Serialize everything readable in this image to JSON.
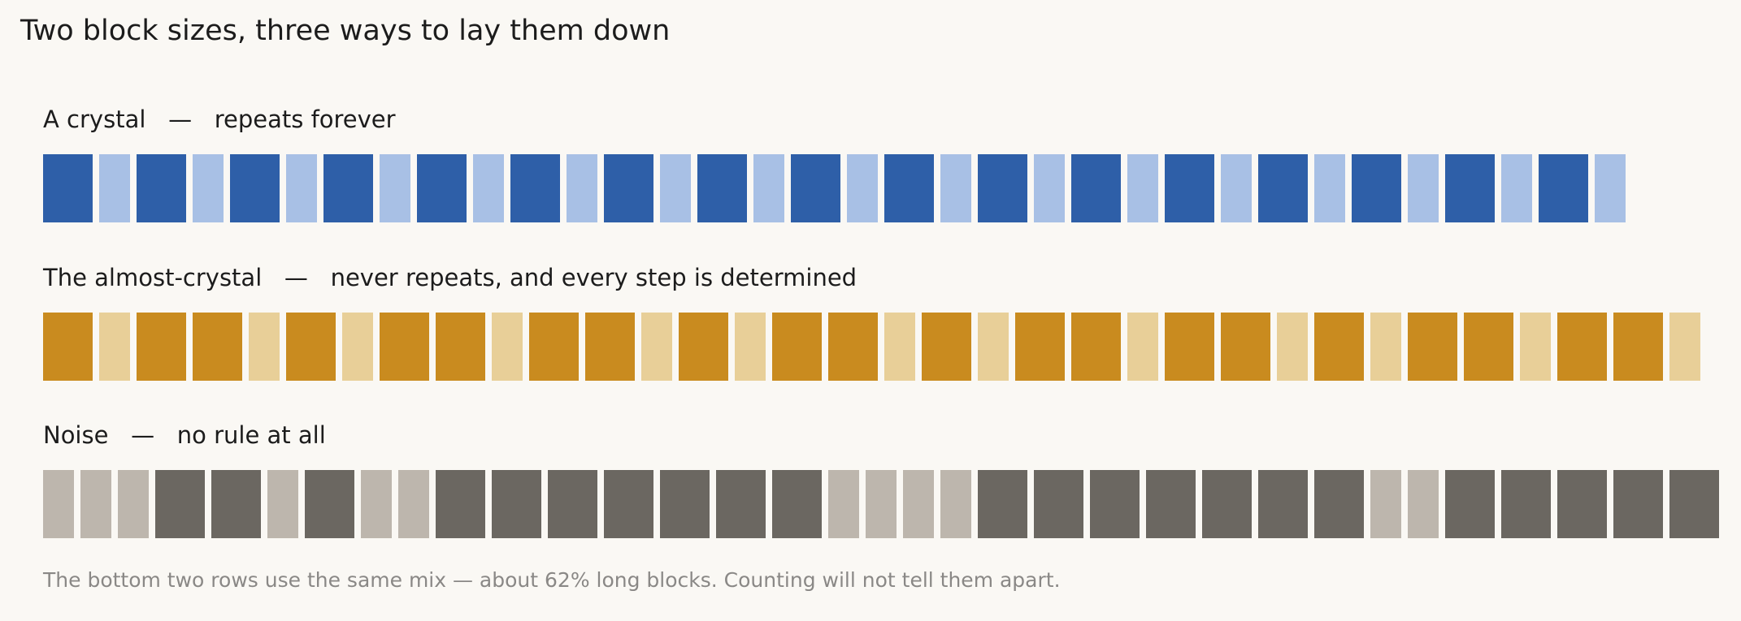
{
  "title": "Two block sizes, three ways to lay them down",
  "rows": [
    {
      "name": "A crystal",
      "separator": "—",
      "description": "repeats forever",
      "colors": {
        "L": "#2e5fa8",
        "S": "#a8c0e5"
      },
      "sequence": "LSLSLSLSLSLSLSLSLSLSLSLSLSLSLSLSLS"
    },
    {
      "name": "The almost-crystal",
      "separator": "—",
      "description": "never repeats, and every step is determined",
      "colors": {
        "L": "#c98b1f",
        "S": "#e8cf98"
      },
      "sequence": "LSLLSLSLLSLLSLSLLSLSLLSLLSLSLLSLLS"
    },
    {
      "name": "Noise",
      "separator": "—",
      "description": "no rule at all",
      "colors": {
        "L": "#6b6761",
        "S": "#bdb6ad"
      },
      "sequence": "SSSLLSLSSLLLLLLLSSSSLLLLLLLSSLLLLL"
    }
  ],
  "footnote": "The bottom two rows use the same mix — about 62% long blocks. Counting will not tell them apart."
}
